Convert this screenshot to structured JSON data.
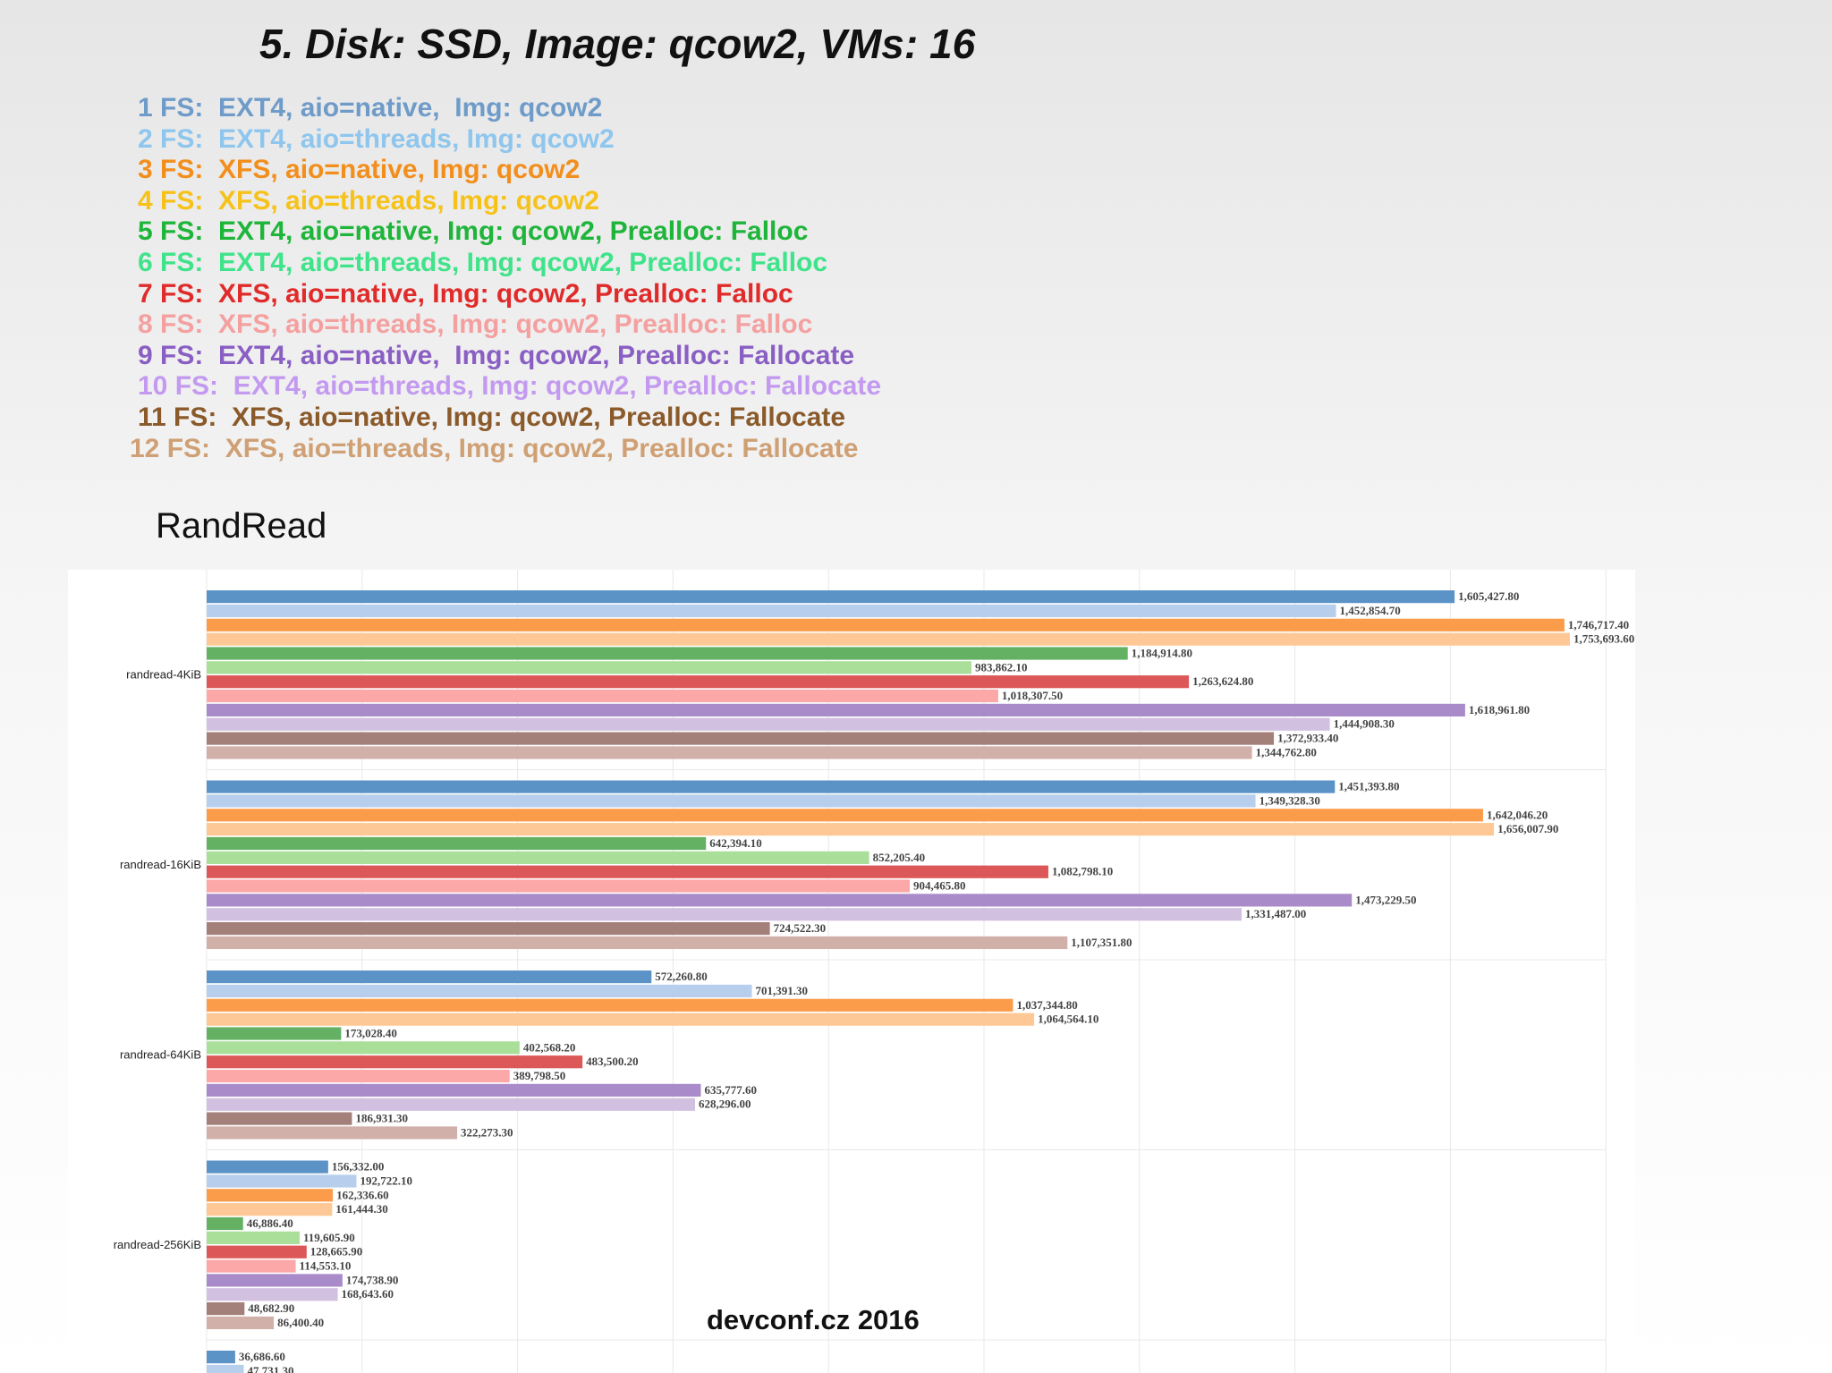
{
  "slide": {
    "title": "5. Disk: SSD, Image: qcow2, VMs: 16",
    "footer": "devconf.cz 2016"
  },
  "legend": [
    {
      "text": "1 FS:  EXT4, aio=native,  Img: qcow2",
      "color": "#6f9bc9"
    },
    {
      "text": "2 FS:  EXT4, aio=threads, Img: qcow2",
      "color": "#8ec6ee"
    },
    {
      "text": "3 FS:  XFS, aio=native, Img: qcow2",
      "color": "#f28e1c"
    },
    {
      "text": "4 FS:  XFS, aio=threads, Img: qcow2",
      "color": "#f6c21a"
    },
    {
      "text": "5 FS:  EXT4, aio=native, Img: qcow2, Prealloc: Falloc",
      "color": "#1eb53a"
    },
    {
      "text": "6 FS:  EXT4, aio=threads, Img: qcow2, Prealloc: Falloc",
      "color": "#3fe38a"
    },
    {
      "text": "7 FS:  XFS, aio=native, Img: qcow2, Prealloc: Falloc",
      "color": "#e02b2b"
    },
    {
      "text": "8 FS:  XFS, aio=threads, Img: qcow2, Prealloc: Falloc",
      "color": "#f4a0a0"
    },
    {
      "text": "9 FS:  EXT4, aio=native,  Img: qcow2, Prealloc: Fallocate",
      "color": "#8a5fc4"
    },
    {
      "text": "10 FS:  EXT4, aio=threads, Img: qcow2, Prealloc: Fallocate",
      "color": "#c39af0"
    },
    {
      "text": "11 FS:  XFS, aio=native, Img: qcow2, Prealloc: Fallocate",
      "color": "#8a5a2b"
    },
    {
      "text": "12 FS:  XFS, aio=threads, Img: qcow2, Prealloc: Fallocate",
      "color": "#cfa074"
    }
  ],
  "chart_data": {
    "type": "bar",
    "orientation": "horizontal",
    "title": "RandRead",
    "xlim": [
      0,
      1800000
    ],
    "grid": true,
    "series_colors": [
      "#5b93c7",
      "#b7cfec",
      "#fb9c4b",
      "#fdc896",
      "#64b163",
      "#a9df99",
      "#dc5858",
      "#fca7a8",
      "#a98bca",
      "#d2c0e0",
      "#a4807a",
      "#d1b0aa"
    ],
    "categories": [
      "randread-4KiB",
      "randread-16KiB",
      "randread-64KiB",
      "randread-256KiB",
      ""
    ],
    "value_labels": [
      [
        "1,605,427.80",
        "1,452,854.70",
        "1,746,717.40",
        "1,753,693.60",
        "1,184,914.80",
        "983,862.10",
        "1,263,624.80",
        "1,018,307.50",
        "1,618,961.80",
        "1,444,908.30",
        "1,372,933.40",
        "1,344,762.80"
      ],
      [
        "1,451,393.80",
        "1,349,328.30",
        "1,642,046.20",
        "1,656,007.90",
        "642,394.10",
        "852,205.40",
        "1,082,798.10",
        "904,465.80",
        "1,473,229.50",
        "1,331,487.00",
        "724,522.30",
        "1,107,351.80"
      ],
      [
        "572,260.80",
        "701,391.30",
        "1,037,344.80",
        "1,064,564.10",
        "173,028.40",
        "402,568.20",
        "483,500.20",
        "389,798.50",
        "635,777.60",
        "628,296.00",
        "186,931.30",
        "322,273.30"
      ],
      [
        "156,332.00",
        "192,722.10",
        "162,336.60",
        "161,444.30",
        "46,886.40",
        "119,605.90",
        "128,665.90",
        "114,553.10",
        "174,738.90",
        "168,643.60",
        "48,682.90",
        "86,400.40"
      ],
      [
        "36,686.60",
        "47,731.30"
      ]
    ],
    "values": [
      [
        1605427.8,
        1452854.7,
        1746717.4,
        1753693.6,
        1184914.8,
        983862.1,
        1263624.8,
        1018307.5,
        1618961.8,
        1444908.3,
        1372933.4,
        1344762.8
      ],
      [
        1451393.8,
        1349328.3,
        1642046.2,
        1656007.9,
        642394.1,
        852205.4,
        1082798.1,
        904465.8,
        1473229.5,
        1331487.0,
        724522.3,
        1107351.8
      ],
      [
        572260.8,
        701391.3,
        1037344.8,
        1064564.1,
        173028.4,
        402568.2,
        483500.2,
        389798.5,
        635777.6,
        628296.0,
        186931.3,
        322273.3
      ],
      [
        156332.0,
        192722.1,
        162336.6,
        161444.3,
        46886.4,
        119605.9,
        128665.9,
        114553.1,
        174738.9,
        168643.6,
        48682.9,
        86400.4
      ],
      [
        36686.6,
        47731.3
      ]
    ]
  }
}
